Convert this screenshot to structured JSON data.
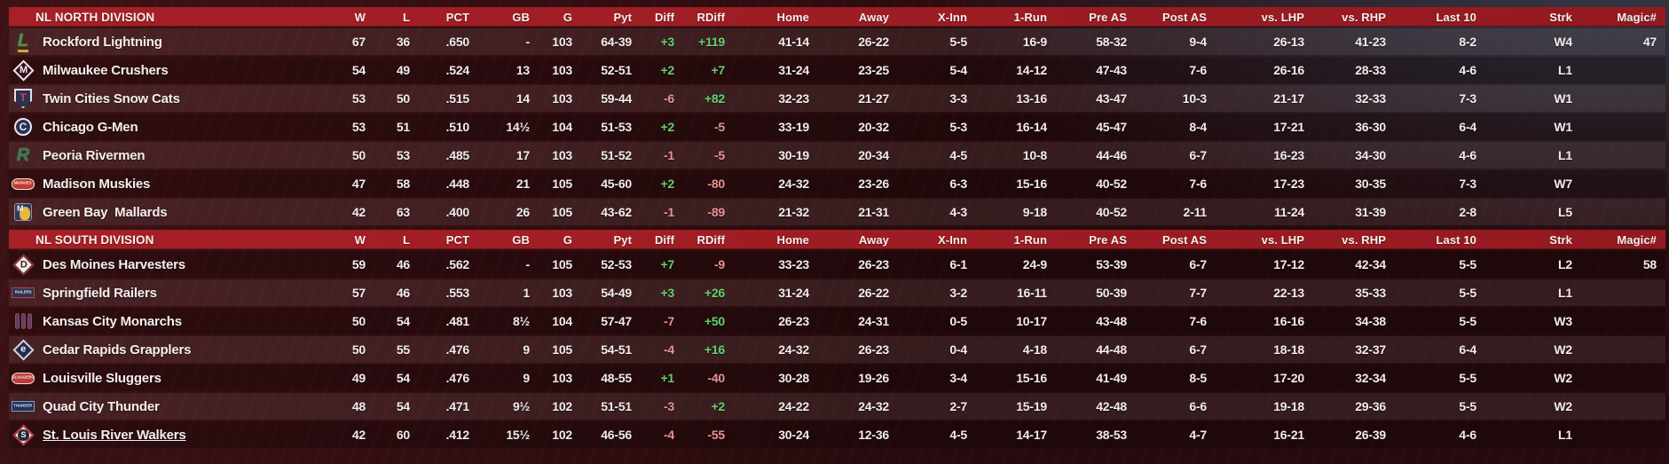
{
  "theme": {
    "header_red_1": "#a62026",
    "header_red_2": "#941a20",
    "positive_green": "#62d06e",
    "negative_red": "#ea9292",
    "row_text": "#f2eceb"
  },
  "columns": [
    "W",
    "L",
    "PCT",
    "GB",
    "G",
    "Pyt",
    "Diff",
    "RDiff",
    "Home",
    "Away",
    "X-Inn",
    "1-Run",
    "Pre AS",
    "Post AS",
    "vs. LHP",
    "vs. RHP",
    "Last 10",
    "Strk",
    "Magic#"
  ],
  "signed_columns": [
    "Diff",
    "RDiff"
  ],
  "divisions": [
    {
      "title": "NL NORTH DIVISION",
      "teams": [
        {
          "name": "Rockford Lightning",
          "underline": false,
          "logo": {
            "shape": "letter",
            "text": "L",
            "fg": "#3f9a3c",
            "accent": "#c9a93b"
          },
          "stats": [
            "67",
            "36",
            ".650",
            "-",
            "103",
            "64-39",
            "+3",
            "+119",
            "41-14",
            "26-22",
            "5-5",
            "16-9",
            "58-32",
            "9-4",
            "26-13",
            "41-23",
            "8-2",
            "W4",
            "47"
          ]
        },
        {
          "name": "Milwaukee Crushers",
          "underline": false,
          "logo": {
            "shape": "diamond",
            "text": "M",
            "bg": "#33121f",
            "border": "#ece6ea",
            "fg": "#f4eff2"
          },
          "stats": [
            "54",
            "49",
            ".524",
            "13",
            "103",
            "52-51",
            "+2",
            "+7",
            "31-24",
            "23-25",
            "5-4",
            "14-12",
            "47-43",
            "7-6",
            "26-16",
            "28-33",
            "4-6",
            "L1",
            ""
          ]
        },
        {
          "name": "Twin Cities Snow Cats",
          "underline": false,
          "logo": {
            "shape": "shield",
            "text": "T",
            "bg": "#2b3152",
            "border": "#e3e0e8",
            "fg": "#cf4550"
          },
          "stats": [
            "53",
            "50",
            ".515",
            "14",
            "103",
            "59-44",
            "-6",
            "+82",
            "32-23",
            "21-27",
            "3-3",
            "13-16",
            "43-47",
            "10-3",
            "21-17",
            "32-33",
            "7-3",
            "W1",
            ""
          ]
        },
        {
          "name": "Chicago G-Men",
          "underline": false,
          "logo": {
            "shape": "circle",
            "text": "C",
            "bg": "#2b3153",
            "border": "#e9e7ec",
            "fg": "#e8e9f0"
          },
          "stats": [
            "53",
            "51",
            ".510",
            "14½",
            "104",
            "51-53",
            "+2",
            "-5",
            "33-19",
            "20-32",
            "5-3",
            "16-14",
            "45-47",
            "8-4",
            "17-21",
            "36-30",
            "6-4",
            "W1",
            ""
          ]
        },
        {
          "name": "Peoria Rivermen",
          "underline": false,
          "logo": {
            "shape": "letter",
            "text": "R",
            "fg": "#2f8046",
            "accent": "transparent"
          },
          "stats": [
            "50",
            "53",
            ".485",
            "17",
            "103",
            "51-52",
            "-1",
            "-5",
            "30-19",
            "20-34",
            "4-5",
            "10-8",
            "44-46",
            "6-7",
            "16-23",
            "34-30",
            "4-6",
            "L1",
            ""
          ]
        },
        {
          "name": "Madison Muskies",
          "underline": false,
          "logo": {
            "shape": "pill",
            "text": "MUSKIES",
            "bg": "#c23b32",
            "border": "#ece5dd",
            "fg": "#f6f1ea"
          },
          "stats": [
            "47",
            "58",
            ".448",
            "21",
            "105",
            "45-60",
            "+2",
            "-80",
            "24-32",
            "23-26",
            "6-3",
            "15-16",
            "40-52",
            "7-6",
            "17-23",
            "30-35",
            "7-3",
            "W7",
            ""
          ]
        },
        {
          "name": "Green Bay  Mallards",
          "underline": false,
          "logo": {
            "shape": "split",
            "text": "M",
            "bg": "#2c3a68",
            "accent": "#e6b83d",
            "fg": "#f2f0f4"
          },
          "stats": [
            "42",
            "63",
            ".400",
            "26",
            "105",
            "43-62",
            "-1",
            "-89",
            "21-32",
            "21-31",
            "4-3",
            "9-18",
            "40-52",
            "2-11",
            "11-24",
            "31-39",
            "2-8",
            "L5",
            ""
          ]
        }
      ]
    },
    {
      "title": "NL SOUTH DIVISION",
      "teams": [
        {
          "name": "Des Moines Harvesters",
          "underline": false,
          "logo": {
            "shape": "diamond",
            "text": "D",
            "bg": "#f1ebe9",
            "border": "#8a2d34",
            "fg": "#39262e"
          },
          "stats": [
            "59",
            "46",
            ".562",
            "-",
            "105",
            "52-53",
            "+7",
            "-9",
            "33-23",
            "26-23",
            "6-1",
            "24-9",
            "53-39",
            "6-7",
            "17-12",
            "42-34",
            "5-5",
            "L2",
            "58"
          ]
        },
        {
          "name": "Springfield Railers",
          "underline": false,
          "logo": {
            "shape": "rect",
            "text": "RAILERS",
            "bg": "#2d3452",
            "border": "#b84545",
            "fg": "#eae4dc"
          },
          "stats": [
            "57",
            "46",
            ".553",
            "1",
            "103",
            "54-49",
            "+3",
            "+26",
            "31-24",
            "26-22",
            "3-2",
            "16-11",
            "50-39",
            "7-7",
            "22-13",
            "35-33",
            "5-5",
            "L1",
            ""
          ]
        },
        {
          "name": "Kansas City Monarchs",
          "underline": false,
          "logo": {
            "shape": "bars",
            "bg": "#3a4b7d",
            "border": "#c03a33"
          },
          "stats": [
            "50",
            "54",
            ".481",
            "8½",
            "104",
            "57-47",
            "-7",
            "+50",
            "26-23",
            "24-31",
            "0-5",
            "10-17",
            "43-48",
            "7-6",
            "16-16",
            "34-38",
            "5-5",
            "W3",
            ""
          ]
        },
        {
          "name": "Cedar Rapids Grapplers",
          "underline": false,
          "logo": {
            "shape": "diamond",
            "text": "e",
            "bg": "#242b4e",
            "border": "#d2d4de",
            "fg": "#f0f0f5"
          },
          "stats": [
            "50",
            "55",
            ".476",
            "9",
            "105",
            "54-51",
            "-4",
            "+16",
            "24-32",
            "26-23",
            "0-4",
            "4-18",
            "44-48",
            "6-7",
            "18-18",
            "32-37",
            "6-4",
            "W2",
            ""
          ]
        },
        {
          "name": "Louisville Sluggers",
          "underline": false,
          "logo": {
            "shape": "pill",
            "text": "SLUGGERS",
            "bg": "#c13a35",
            "border": "#e9e2d8",
            "fg": "#f7f2ec"
          },
          "stats": [
            "49",
            "54",
            ".476",
            "9",
            "103",
            "48-55",
            "+1",
            "-40",
            "30-28",
            "19-26",
            "3-4",
            "15-16",
            "41-49",
            "8-5",
            "17-20",
            "32-34",
            "5-5",
            "W2",
            ""
          ]
        },
        {
          "name": "Quad City Thunder",
          "underline": false,
          "logo": {
            "shape": "rect",
            "text": "THUNDER",
            "bg": "#24325a",
            "border": "#7f9cc9",
            "fg": "#d3e1f2"
          },
          "stats": [
            "48",
            "54",
            ".471",
            "9½",
            "102",
            "51-51",
            "-3",
            "+2",
            "24-22",
            "24-32",
            "2-7",
            "15-19",
            "42-48",
            "6-6",
            "19-18",
            "29-36",
            "5-5",
            "W2",
            ""
          ]
        },
        {
          "name": "St. Louis River Walkers",
          "underline": true,
          "logo": {
            "shape": "diamond-circle",
            "text": "S",
            "bg": "#f4efec",
            "border": "#b5323b",
            "inner": "#242838",
            "fg": "#f4f2f5"
          },
          "stats": [
            "42",
            "60",
            ".412",
            "15½",
            "102",
            "46-56",
            "-4",
            "-55",
            "30-24",
            "12-36",
            "4-5",
            "14-17",
            "38-53",
            "4-7",
            "16-21",
            "26-39",
            "4-6",
            "L1",
            ""
          ]
        }
      ]
    }
  ]
}
